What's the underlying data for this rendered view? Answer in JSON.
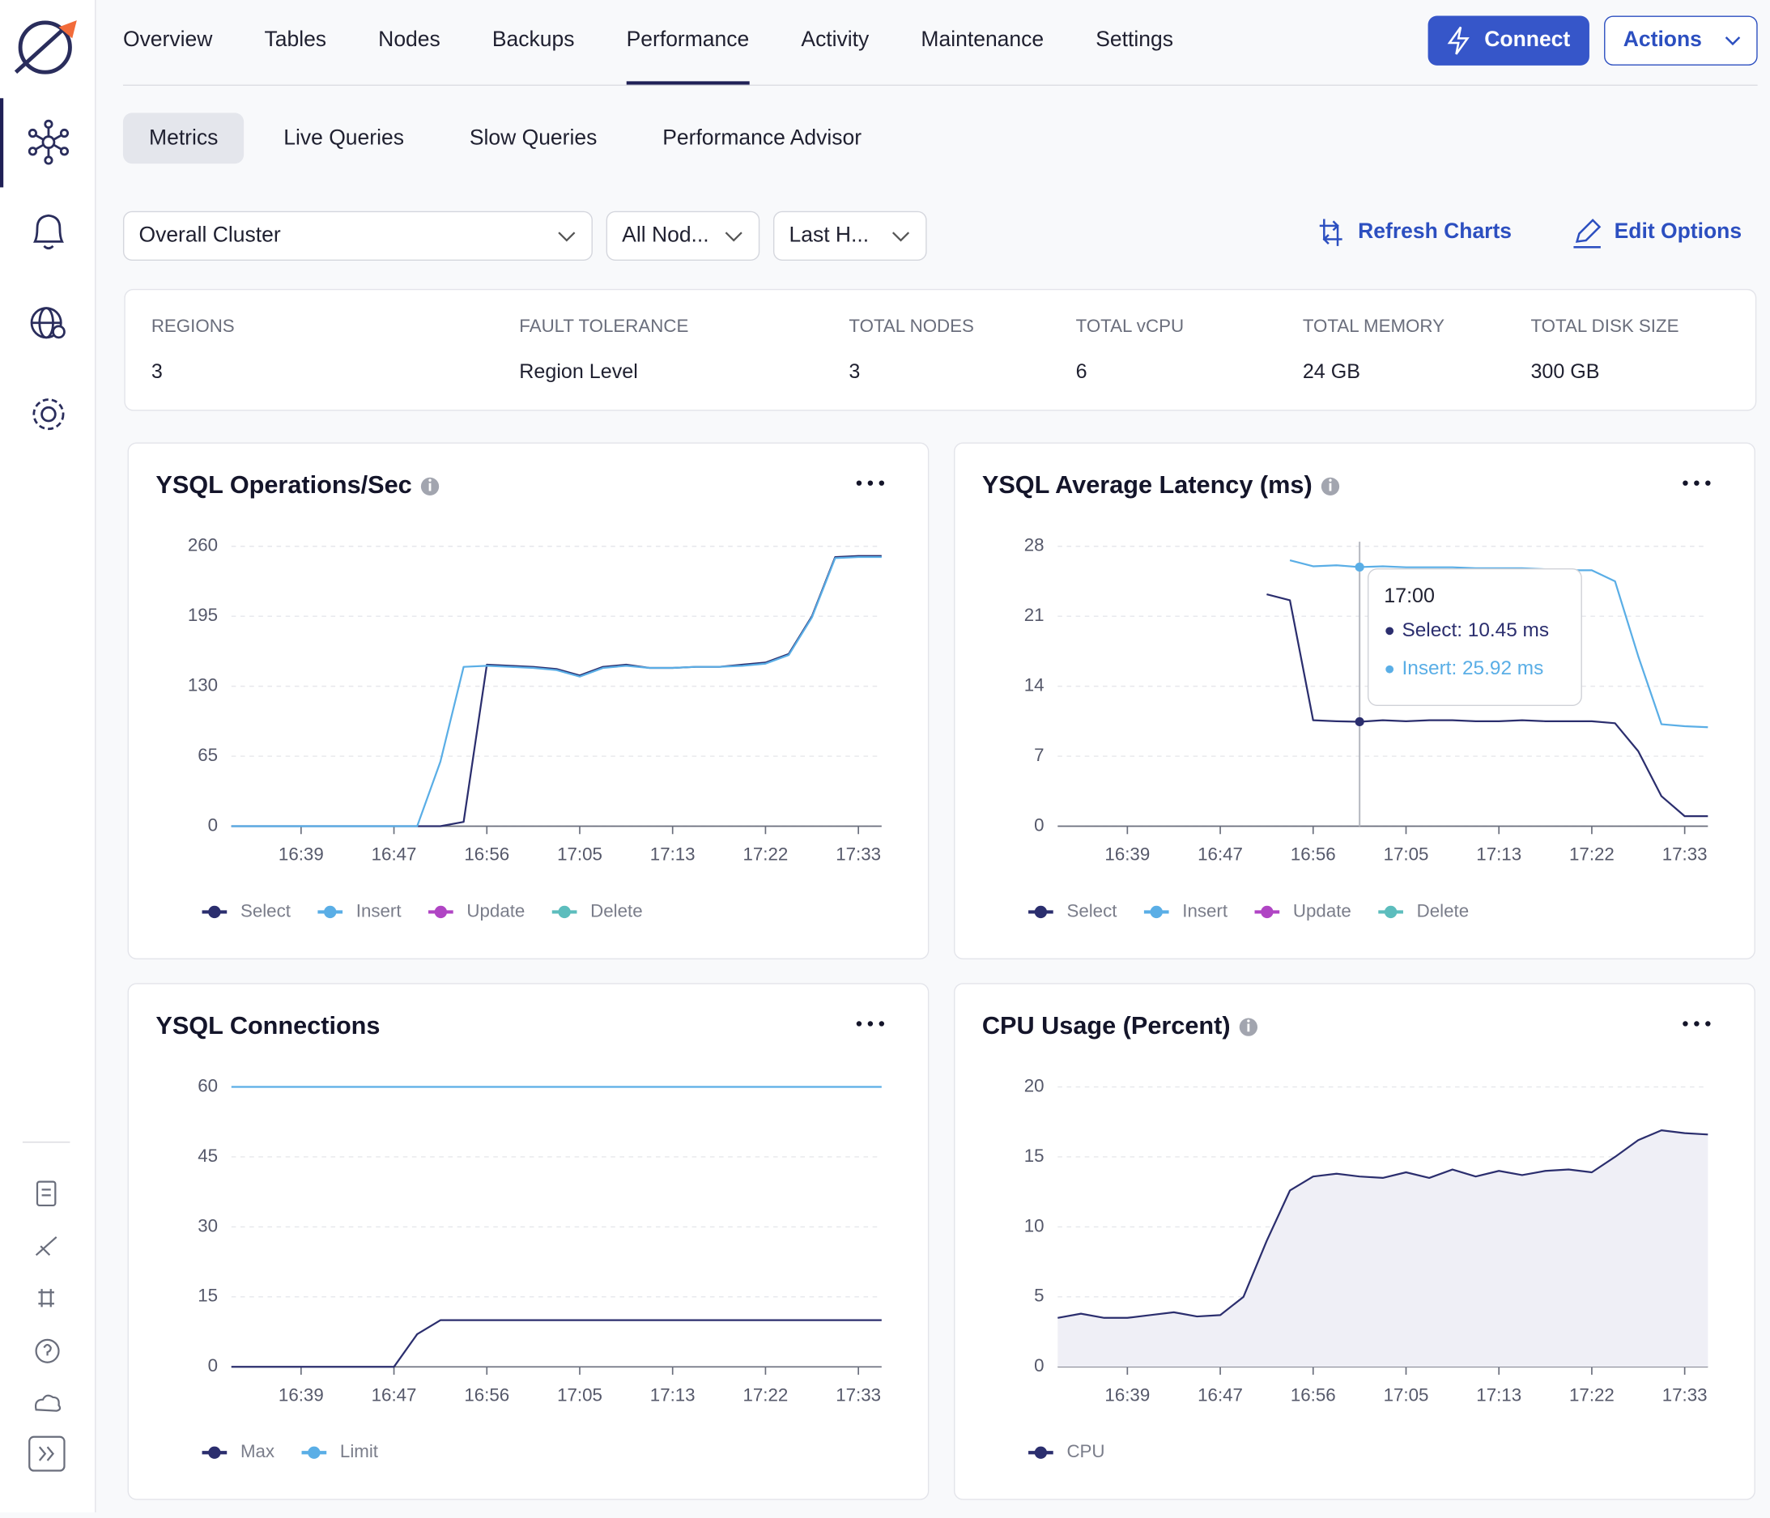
{
  "nav": {
    "tabs": [
      "Overview",
      "Tables",
      "Nodes",
      "Backups",
      "Performance",
      "Activity",
      "Maintenance",
      "Settings"
    ]
  },
  "buttons": {
    "connect": "Connect",
    "actions": "Actions"
  },
  "subtabs": [
    "Metrics",
    "Live Queries",
    "Slow Queries",
    "Performance Advisor"
  ],
  "filters": [
    "Overall Cluster",
    "All Nod...",
    "Last H..."
  ],
  "links": {
    "refresh": "Refresh Charts",
    "edit": "Edit Options"
  },
  "stats": [
    {
      "label": "REGIONS",
      "value": 3
    },
    {
      "label": "FAULT TOLERANCE",
      "value": "Region Level"
    },
    {
      "label": "TOTAL NODES",
      "value": 3
    },
    {
      "label": "TOTAL vCPU",
      "value": 6
    },
    {
      "label": "TOTAL MEMORY",
      "value": "24 GB"
    },
    {
      "label": "TOTAL DISK SIZE",
      "value": "300 GB"
    }
  ],
  "chart_data": [
    {
      "type": "line",
      "title": "YSQL Operations/Sec",
      "info_icon": true,
      "x": [
        "16:33",
        "16:35",
        "16:37",
        "16:39",
        "16:41",
        "16:43",
        "16:45",
        "16:47",
        "16:49",
        "16:51",
        "16:54",
        "16:56",
        "16:58",
        "17:00",
        "17:03",
        "17:05",
        "17:07",
        "17:09",
        "17:11",
        "17:13",
        "17:15",
        "17:18",
        "17:20",
        "17:22",
        "17:25",
        "17:28",
        "17:30",
        "17:33",
        "17:35"
      ],
      "xticks": [
        "16:39",
        "16:47",
        "16:56",
        "17:05",
        "17:13",
        "17:22",
        "17:33"
      ],
      "ylim": [
        0,
        260
      ],
      "yticks": [
        0,
        65,
        130,
        195,
        260
      ],
      "grid": true,
      "series": [
        {
          "name": "Select",
          "color": "#2b2e6e",
          "values": [
            0,
            0,
            0,
            0,
            0,
            0,
            0,
            0,
            0,
            0,
            4,
            150,
            149,
            148,
            146,
            140,
            148,
            150,
            147,
            147,
            148,
            148,
            150,
            152,
            160,
            195,
            250,
            251,
            251
          ]
        },
        {
          "name": "Insert",
          "color": "#5aaee6",
          "values": [
            0,
            0,
            0,
            0,
            0,
            0,
            0,
            0,
            0,
            60,
            148,
            149,
            148,
            147,
            145,
            139,
            147,
            149,
            147,
            147,
            148,
            148,
            149,
            151,
            159,
            194,
            249,
            250,
            250
          ]
        },
        {
          "name": "Update",
          "color": "#b045c4"
        },
        {
          "name": "Delete",
          "color": "#5cbdbd"
        }
      ]
    },
    {
      "type": "line",
      "title": "YSQL Average Latency (ms)",
      "info_icon": true,
      "x": [
        "16:33",
        "16:35",
        "16:37",
        "16:39",
        "16:41",
        "16:43",
        "16:45",
        "16:47",
        "16:49",
        "16:51",
        "16:54",
        "16:56",
        "16:58",
        "17:00",
        "17:03",
        "17:05",
        "17:07",
        "17:09",
        "17:11",
        "17:13",
        "17:15",
        "17:18",
        "17:20",
        "17:22",
        "17:25",
        "17:28",
        "17:30",
        "17:33",
        "17:35"
      ],
      "xticks": [
        "16:39",
        "16:47",
        "16:56",
        "17:05",
        "17:13",
        "17:22",
        "17:33"
      ],
      "ylim": [
        0,
        28
      ],
      "yticks": [
        0,
        7,
        14,
        21,
        28
      ],
      "grid": true,
      "series": [
        {
          "name": "Select",
          "color": "#2b2e6e",
          "values": [
            null,
            null,
            null,
            null,
            null,
            null,
            null,
            null,
            null,
            23.2,
            22.6,
            10.6,
            10.5,
            10.45,
            10.6,
            10.5,
            10.6,
            10.6,
            10.5,
            10.5,
            10.6,
            10.5,
            10.5,
            10.5,
            10.3,
            7.5,
            3.0,
            1.0,
            1.0
          ]
        },
        {
          "name": "Insert",
          "color": "#5aaee6",
          "values": [
            null,
            null,
            null,
            null,
            null,
            null,
            null,
            null,
            null,
            null,
            26.6,
            26.0,
            26.1,
            25.92,
            26.0,
            25.9,
            25.9,
            25.9,
            25.8,
            25.8,
            25.8,
            25.7,
            25.6,
            25.6,
            24.5,
            17.0,
            10.2,
            10.0,
            9.9
          ]
        },
        {
          "name": "Update",
          "color": "#b045c4"
        },
        {
          "name": "Delete",
          "color": "#5cbdbd"
        }
      ],
      "tooltip": {
        "time": "17:00",
        "items": [
          "Select: 10.45 ms",
          "Insert: 25.92 ms"
        ]
      }
    },
    {
      "type": "line",
      "title": "YSQL Connections",
      "info_icon": false,
      "x": [
        "16:33",
        "16:35",
        "16:37",
        "16:39",
        "16:41",
        "16:43",
        "16:45",
        "16:47",
        "16:49",
        "16:51",
        "16:54",
        "16:56",
        "16:58",
        "17:00",
        "17:03",
        "17:05",
        "17:07",
        "17:09",
        "17:11",
        "17:13",
        "17:15",
        "17:18",
        "17:20",
        "17:22",
        "17:25",
        "17:28",
        "17:30",
        "17:33",
        "17:35"
      ],
      "xticks": [
        "16:39",
        "16:47",
        "16:56",
        "17:05",
        "17:13",
        "17:22",
        "17:33"
      ],
      "ylim": [
        0,
        60
      ],
      "yticks": [
        0,
        15,
        30,
        45,
        60
      ],
      "grid": true,
      "series": [
        {
          "name": "Max",
          "color": "#2b2e6e",
          "values": [
            0,
            0,
            0,
            0,
            0,
            0,
            0,
            0,
            7,
            10,
            10,
            10,
            10,
            10,
            10,
            10,
            10,
            10,
            10,
            10,
            10,
            10,
            10,
            10,
            10,
            10,
            10,
            10,
            10
          ]
        },
        {
          "name": "Limit",
          "color": "#5aaee6",
          "values": [
            60,
            60,
            60,
            60,
            60,
            60,
            60,
            60,
            60,
            60,
            60,
            60,
            60,
            60,
            60,
            60,
            60,
            60,
            60,
            60,
            60,
            60,
            60,
            60,
            60,
            60,
            60,
            60,
            60
          ]
        }
      ]
    },
    {
      "type": "area",
      "title": "CPU Usage (Percent)",
      "info_icon": true,
      "x": [
        "16:33",
        "16:35",
        "16:37",
        "16:39",
        "16:41",
        "16:43",
        "16:45",
        "16:47",
        "16:49",
        "16:51",
        "16:54",
        "16:56",
        "16:58",
        "17:00",
        "17:03",
        "17:05",
        "17:07",
        "17:09",
        "17:11",
        "17:13",
        "17:15",
        "17:18",
        "17:20",
        "17:22",
        "17:25",
        "17:28",
        "17:30",
        "17:33",
        "17:35"
      ],
      "xticks": [
        "16:39",
        "16:47",
        "16:56",
        "17:05",
        "17:13",
        "17:22",
        "17:33"
      ],
      "ylim": [
        0,
        20
      ],
      "yticks": [
        0,
        5,
        10,
        15,
        20
      ],
      "grid": true,
      "series": [
        {
          "name": "CPU",
          "color": "#2b2e6e",
          "fill": "#efeff6",
          "values": [
            3.5,
            3.8,
            3.5,
            3.5,
            3.7,
            3.9,
            3.6,
            3.7,
            5.0,
            9.0,
            12.6,
            13.6,
            13.8,
            13.6,
            13.5,
            13.9,
            13.5,
            14.1,
            13.6,
            14.0,
            13.7,
            14.0,
            14.1,
            13.9,
            15.0,
            16.2,
            16.9,
            16.7,
            16.6
          ]
        }
      ]
    }
  ]
}
